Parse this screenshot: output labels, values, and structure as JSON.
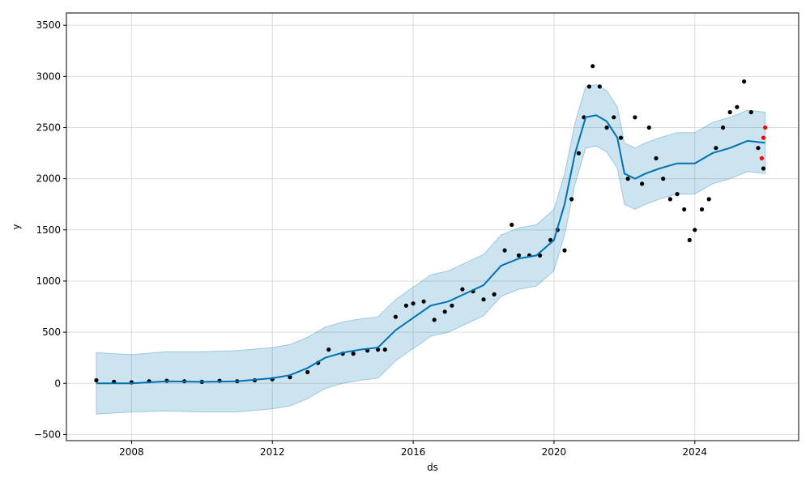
{
  "chart_data": {
    "type": "line",
    "title": "",
    "xlabel": "ds",
    "ylabel": "y",
    "xlim": [
      2006.15,
      2026.95
    ],
    "ylim": [
      -560,
      3620
    ],
    "x_ticks": [
      2008,
      2012,
      2016,
      2020,
      2024
    ],
    "x_tick_labels": [
      "2008",
      "2012",
      "2016",
      "2020",
      "2024"
    ],
    "y_ticks": [
      -500,
      0,
      500,
      1000,
      1500,
      2000,
      2500,
      3000,
      3500
    ],
    "y_tick_labels": [
      "−500",
      "0",
      "500",
      "1000",
      "1500",
      "2000",
      "2500",
      "3000",
      "3500"
    ],
    "grid": true,
    "colors": {
      "forecast_line": "#0072B2",
      "uncertainty_band": "#0072B2",
      "observed": "#000000",
      "recent": "#ff0000"
    },
    "series": [
      {
        "role": "observed",
        "style": "points",
        "x": [
          2007.0,
          2007.5,
          2008.0,
          2008.5,
          2009.0,
          2009.5,
          2010.0,
          2010.5,
          2011.0,
          2011.5,
          2012.0,
          2012.5,
          2013.0,
          2013.3,
          2013.6,
          2014.0,
          2014.3,
          2014.7,
          2015.0,
          2015.2,
          2015.5,
          2015.8,
          2016.0,
          2016.3,
          2016.6,
          2016.9,
          2017.1,
          2017.4,
          2017.7,
          2018.0,
          2018.3,
          2018.6,
          2018.8,
          2019.0,
          2019.3,
          2019.6,
          2019.9,
          2020.1,
          2020.3,
          2020.5,
          2020.7,
          2020.85,
          2021.0,
          2021.1,
          2021.3,
          2021.5,
          2021.7,
          2021.9,
          2022.1,
          2022.3,
          2022.5,
          2022.7,
          2022.9,
          2023.1,
          2023.3,
          2023.5,
          2023.7,
          2023.85,
          2024.0,
          2024.2,
          2024.4,
          2024.6,
          2024.8,
          2025.0,
          2025.2,
          2025.4,
          2025.6,
          2025.8,
          2025.95
        ],
        "y": [
          30,
          15,
          10,
          20,
          25,
          20,
          15,
          25,
          20,
          30,
          40,
          60,
          110,
          200,
          330,
          290,
          290,
          320,
          330,
          330,
          650,
          760,
          780,
          800,
          620,
          700,
          760,
          920,
          900,
          820,
          870,
          1300,
          1550,
          1250,
          1250,
          1250,
          1400,
          1500,
          1300,
          1800,
          2250,
          2600,
          2900,
          3100,
          2900,
          2500,
          2600,
          2400,
          2000,
          2600,
          1950,
          2500,
          2200,
          2000,
          1800,
          1850,
          1700,
          1400,
          1500,
          1700,
          1800,
          2300,
          2500,
          2650,
          2700,
          2950,
          2650,
          2300,
          2100
        ]
      },
      {
        "role": "recent",
        "style": "points",
        "x": [
          2025.9,
          2025.95,
          2026.0
        ],
        "y": [
          2200,
          2400,
          2500
        ]
      },
      {
        "role": "forecast",
        "style": "line",
        "x": [
          2007.0,
          2008.0,
          2009.0,
          2010.0,
          2011.0,
          2012.0,
          2012.5,
          2013.0,
          2013.5,
          2014.0,
          2014.5,
          2015.0,
          2015.5,
          2016.0,
          2016.5,
          2017.0,
          2017.5,
          2018.0,
          2018.5,
          2019.0,
          2019.5,
          2020.0,
          2020.3,
          2020.6,
          2020.9,
          2021.2,
          2021.5,
          2021.8,
          2022.0,
          2022.3,
          2022.6,
          2023.0,
          2023.5,
          2024.0,
          2024.5,
          2025.0,
          2025.5,
          2026.0
        ],
        "y": [
          0,
          0,
          20,
          15,
          20,
          50,
          80,
          150,
          250,
          300,
          330,
          350,
          520,
          640,
          760,
          800,
          880,
          960,
          1150,
          1220,
          1250,
          1400,
          1750,
          2250,
          2600,
          2620,
          2560,
          2400,
          2050,
          2000,
          2050,
          2100,
          2150,
          2150,
          2250,
          2300,
          2370,
          2350
        ]
      },
      {
        "role": "uncertainty",
        "style": "band",
        "x": [
          2007.0,
          2008.0,
          2009.0,
          2010.0,
          2011.0,
          2012.0,
          2012.5,
          2013.0,
          2013.5,
          2014.0,
          2014.5,
          2015.0,
          2015.5,
          2016.0,
          2016.5,
          2017.0,
          2017.5,
          2018.0,
          2018.5,
          2019.0,
          2019.5,
          2020.0,
          2020.3,
          2020.6,
          2020.9,
          2021.2,
          2021.5,
          2021.8,
          2022.0,
          2022.3,
          2022.6,
          2023.0,
          2023.5,
          2024.0,
          2024.5,
          2025.0,
          2025.5,
          2026.0
        ],
        "lower": [
          -300,
          -280,
          -270,
          -280,
          -280,
          -250,
          -220,
          -150,
          -50,
          0,
          30,
          50,
          220,
          340,
          460,
          500,
          580,
          660,
          850,
          920,
          950,
          1100,
          1450,
          1950,
          2300,
          2320,
          2260,
          2100,
          1750,
          1700,
          1750,
          1800,
          1850,
          1850,
          1950,
          2000,
          2070,
          2050
        ],
        "upper": [
          300,
          280,
          310,
          310,
          320,
          350,
          380,
          450,
          550,
          600,
          630,
          650,
          820,
          940,
          1060,
          1100,
          1180,
          1260,
          1450,
          1520,
          1550,
          1700,
          2050,
          2550,
          2900,
          2920,
          2860,
          2700,
          2350,
          2300,
          2350,
          2400,
          2450,
          2450,
          2550,
          2600,
          2670,
          2650
        ]
      }
    ]
  }
}
